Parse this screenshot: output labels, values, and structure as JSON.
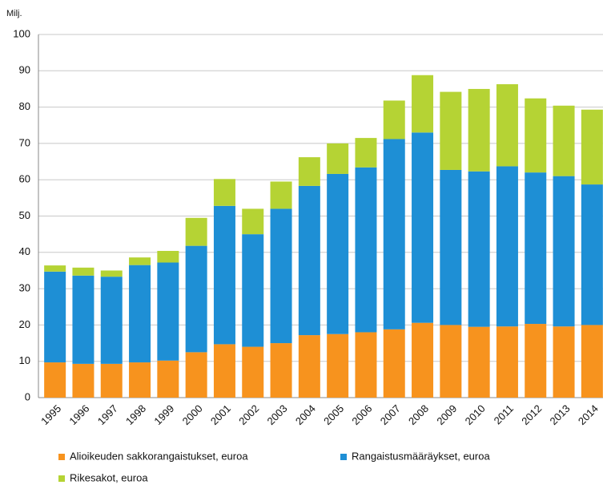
{
  "chart_data": {
    "type": "stacked_bar",
    "y_label": "Milj.",
    "categories": [
      "1995",
      "1996",
      "1997",
      "1998",
      "1999",
      "2000",
      "2001",
      "2002",
      "2003",
      "2004",
      "2005",
      "2006",
      "2007",
      "2008",
      "2009",
      "2010",
      "2011",
      "2012",
      "2013",
      "2014"
    ],
    "series": [
      {
        "name": "Alioikeuden sakkorangaistukset, euroa",
        "color": "#f7931e",
        "values": [
          9.7,
          9.3,
          9.3,
          9.7,
          10.2,
          12.5,
          14.7,
          14.0,
          15.0,
          17.2,
          17.5,
          18.0,
          18.8,
          20.6,
          20.0,
          19.5,
          19.6,
          20.3,
          19.6,
          20.0
        ]
      },
      {
        "name": "Rangaistusmääräykset, euroa",
        "color": "#1e8fd5",
        "values": [
          25.0,
          24.3,
          24.0,
          26.8,
          27.0,
          29.3,
          38.1,
          31.0,
          37.0,
          41.1,
          44.1,
          45.4,
          52.4,
          52.4,
          42.7,
          42.8,
          44.1,
          41.7,
          41.4,
          38.7
        ]
      },
      {
        "name": "Rikesakot, euroa",
        "color": "#b5d334",
        "values": [
          1.7,
          2.2,
          1.7,
          2.1,
          3.2,
          7.7,
          7.4,
          7.0,
          7.5,
          7.9,
          8.4,
          8.1,
          10.6,
          15.8,
          21.5,
          22.7,
          22.6,
          20.4,
          19.4,
          20.6
        ]
      }
    ],
    "ylim": [
      0,
      100
    ],
    "yticks": [
      0,
      10,
      20,
      30,
      40,
      50,
      60,
      70,
      80,
      90,
      100
    ],
    "grid": true
  }
}
